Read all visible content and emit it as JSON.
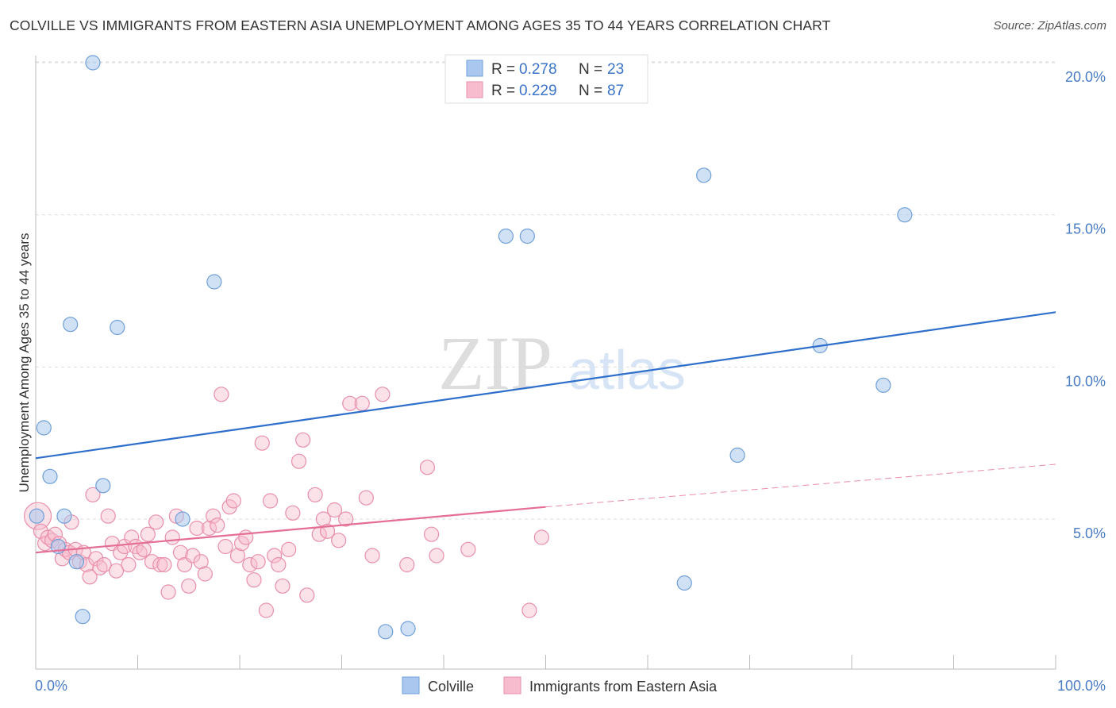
{
  "title": "COLVILLE VS IMMIGRANTS FROM EASTERN ASIA UNEMPLOYMENT AMONG AGES 35 TO 44 YEARS CORRELATION CHART",
  "source": "Source: ZipAtlas.com",
  "watermark": {
    "part1": "ZIP",
    "part2": "atlas"
  },
  "legend": {
    "rows": [
      {
        "r_label": "R =",
        "r_value": "0.278",
        "n_label": "N =",
        "n_value": "23"
      },
      {
        "r_label": "R =",
        "r_value": "0.229",
        "n_label": "N =",
        "n_value": "87"
      }
    ]
  },
  "bottom_legend": [
    "Colville",
    "Immigrants from Eastern Asia"
  ],
  "colors": {
    "colville_fill": "#aac8ef",
    "colville_stroke": "#6f9fd8",
    "colville_line": "#2f6fcc",
    "immig_fill": "#f7bccd",
    "immig_stroke": "#e98fac",
    "immig_line": "#e46e96",
    "tick_label": "#4a7cc4",
    "grid": "#dddddd"
  },
  "chart_data": {
    "type": "scatter",
    "title": "COLVILLE VS IMMIGRANTS FROM EASTERN ASIA UNEMPLOYMENT AMONG AGES 35 TO 44 YEARS CORRELATION CHART",
    "xlabel": "",
    "ylabel": "Unemployment Among Ages 35 to 44 years",
    "xlim": [
      0,
      100
    ],
    "ylim": [
      0,
      20.5
    ],
    "x_tick_labels": [
      "0.0%",
      "100.0%"
    ],
    "y_ticks": [
      5,
      10,
      15,
      20
    ],
    "y_tick_labels": [
      "5.0%",
      "10.0%",
      "15.0%",
      "20.0%"
    ],
    "grid": "horizontal dashed",
    "legend_position": "top-center",
    "series": [
      {
        "name": "Colville",
        "r": 0.278,
        "n": 23,
        "trend": {
          "x": [
            0,
            100
          ],
          "y": [
            7.0,
            11.8
          ]
        },
        "points": [
          [
            0.1,
            5.1
          ],
          [
            0.8,
            8.0
          ],
          [
            1.4,
            6.4
          ],
          [
            2.2,
            4.1
          ],
          [
            2.8,
            5.1
          ],
          [
            3.4,
            11.4
          ],
          [
            4.0,
            3.6
          ],
          [
            4.6,
            1.8
          ],
          [
            5.6,
            20.0
          ],
          [
            6.6,
            6.1
          ],
          [
            8.0,
            11.3
          ],
          [
            14.4,
            5.0
          ],
          [
            17.5,
            12.8
          ],
          [
            34.3,
            1.3
          ],
          [
            36.5,
            1.4
          ],
          [
            46.1,
            14.3
          ],
          [
            48.2,
            14.3
          ],
          [
            63.6,
            2.9
          ],
          [
            65.5,
            16.3
          ],
          [
            68.8,
            7.1
          ],
          [
            76.9,
            10.7
          ],
          [
            83.1,
            9.4
          ],
          [
            85.2,
            15.0
          ]
        ]
      },
      {
        "name": "Immigrants from Eastern Asia",
        "r": 0.229,
        "n": 87,
        "trend": {
          "x": [
            0,
            50
          ],
          "y": [
            3.9,
            5.4
          ]
        },
        "trend_dashed": {
          "x": [
            50,
            100
          ],
          "y": [
            5.4,
            6.8
          ]
        },
        "points": [
          [
            0.2,
            5.1
          ],
          [
            0.5,
            4.6
          ],
          [
            0.9,
            4.2
          ],
          [
            1.2,
            4.4
          ],
          [
            1.6,
            4.3
          ],
          [
            1.9,
            4.5
          ],
          [
            2.3,
            4.2
          ],
          [
            2.6,
            3.7
          ],
          [
            2.9,
            4.0
          ],
          [
            3.3,
            3.9
          ],
          [
            3.5,
            4.9
          ],
          [
            3.9,
            4.0
          ],
          [
            4.3,
            3.6
          ],
          [
            4.7,
            3.9
          ],
          [
            5.0,
            3.5
          ],
          [
            5.3,
            3.1
          ],
          [
            5.6,
            5.8
          ],
          [
            5.9,
            3.7
          ],
          [
            6.3,
            3.4
          ],
          [
            6.7,
            3.5
          ],
          [
            7.1,
            5.1
          ],
          [
            7.5,
            4.2
          ],
          [
            7.9,
            3.3
          ],
          [
            8.3,
            3.9
          ],
          [
            8.7,
            4.1
          ],
          [
            9.1,
            3.5
          ],
          [
            9.4,
            4.4
          ],
          [
            9.8,
            4.1
          ],
          [
            10.2,
            3.9
          ],
          [
            10.6,
            4.0
          ],
          [
            11.0,
            4.5
          ],
          [
            11.4,
            3.6
          ],
          [
            11.8,
            4.9
          ],
          [
            12.2,
            3.5
          ],
          [
            12.6,
            3.5
          ],
          [
            13.0,
            2.6
          ],
          [
            13.4,
            4.4
          ],
          [
            13.8,
            5.1
          ],
          [
            14.2,
            3.9
          ],
          [
            14.6,
            3.5
          ],
          [
            15.0,
            2.8
          ],
          [
            15.4,
            3.8
          ],
          [
            15.8,
            4.7
          ],
          [
            16.2,
            3.6
          ],
          [
            16.6,
            3.2
          ],
          [
            17.0,
            4.7
          ],
          [
            17.4,
            5.1
          ],
          [
            17.8,
            4.8
          ],
          [
            18.2,
            9.1
          ],
          [
            18.6,
            4.1
          ],
          [
            19.0,
            5.4
          ],
          [
            19.4,
            5.6
          ],
          [
            19.8,
            3.8
          ],
          [
            20.2,
            4.2
          ],
          [
            20.6,
            4.4
          ],
          [
            21.0,
            3.5
          ],
          [
            21.4,
            3.0
          ],
          [
            21.8,
            3.6
          ],
          [
            22.2,
            7.5
          ],
          [
            22.6,
            2.0
          ],
          [
            23.0,
            5.6
          ],
          [
            23.4,
            3.8
          ],
          [
            23.8,
            3.5
          ],
          [
            24.2,
            2.8
          ],
          [
            24.8,
            4.0
          ],
          [
            25.2,
            5.2
          ],
          [
            25.8,
            6.9
          ],
          [
            26.2,
            7.6
          ],
          [
            26.6,
            2.5
          ],
          [
            27.4,
            5.8
          ],
          [
            27.8,
            4.5
          ],
          [
            28.2,
            5.0
          ],
          [
            28.6,
            4.6
          ],
          [
            29.3,
            5.3
          ],
          [
            29.7,
            4.3
          ],
          [
            30.4,
            5.0
          ],
          [
            30.8,
            8.8
          ],
          [
            32.0,
            8.8
          ],
          [
            32.4,
            5.7
          ],
          [
            33.0,
            3.8
          ],
          [
            34.0,
            9.1
          ],
          [
            36.4,
            3.5
          ],
          [
            38.4,
            6.7
          ],
          [
            38.8,
            4.5
          ],
          [
            39.3,
            3.8
          ],
          [
            42.4,
            4.0
          ],
          [
            48.4,
            2.0
          ],
          [
            49.6,
            4.4
          ]
        ]
      }
    ]
  }
}
